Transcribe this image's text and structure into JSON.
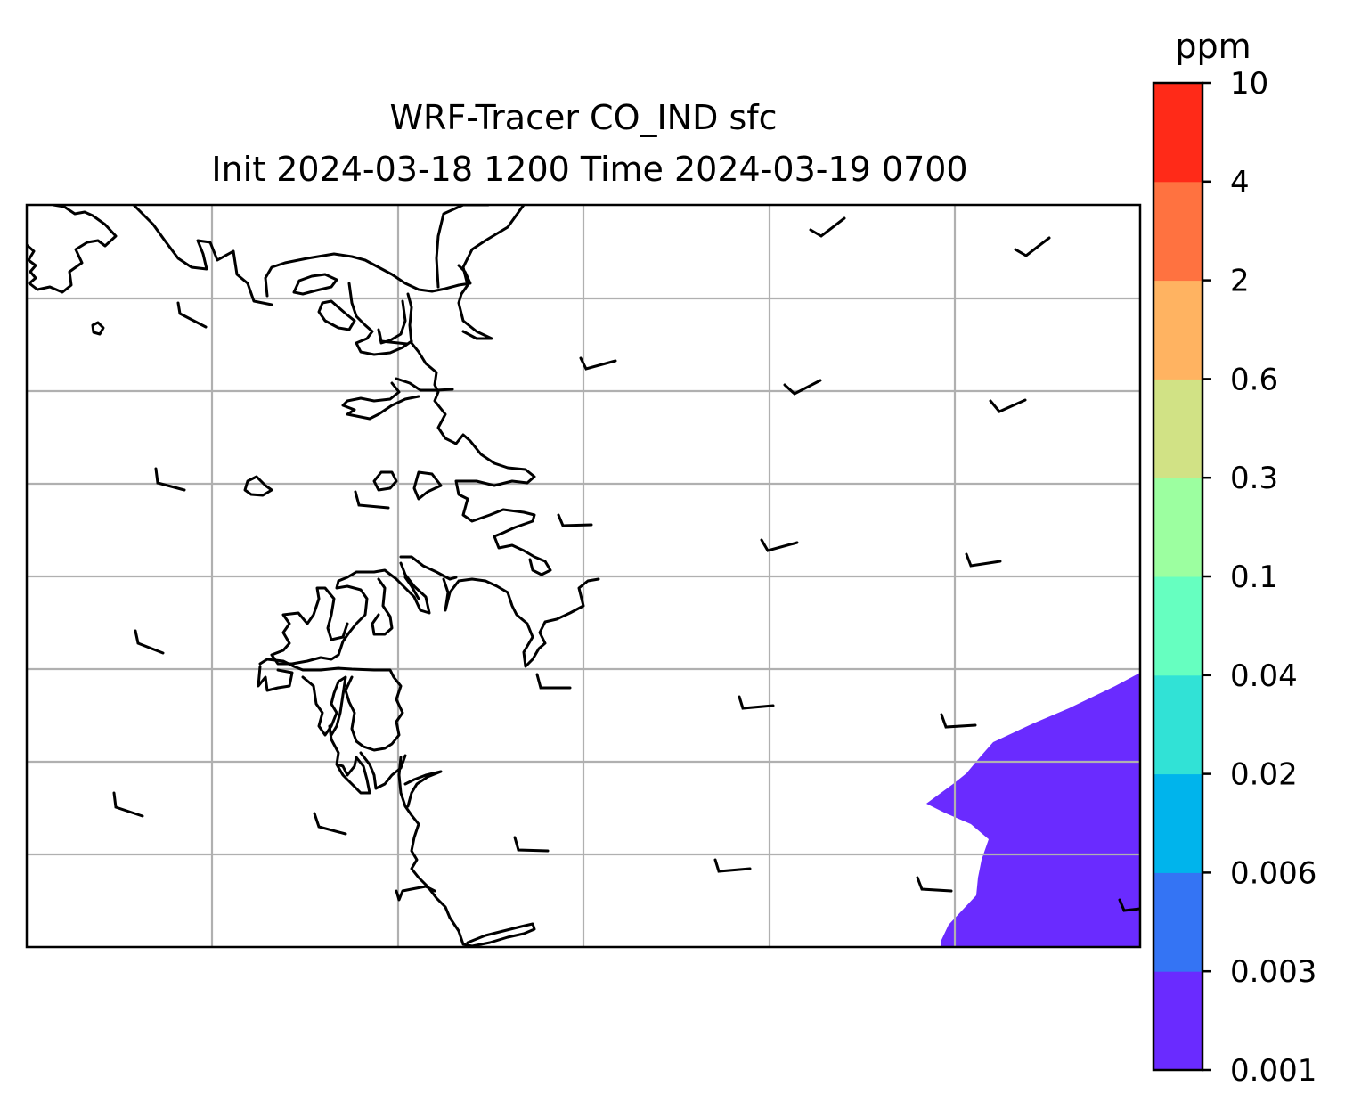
{
  "title": {
    "line1": "WRF-Tracer CO_IND sfc",
    "line2": "Init 2024-03-18 1200 Time 2024-03-19 0700"
  },
  "colorbar": {
    "unit": "ppm",
    "levels": [
      "0.001",
      "0.003",
      "0.006",
      "0.02",
      "0.04",
      "0.1",
      "0.3",
      "0.6",
      "2",
      "4",
      "10"
    ],
    "colors": [
      "#6a2bff",
      "#3474f4",
      "#00b4ec",
      "#31e2d6",
      "#66ffc0",
      "#9cffa0",
      "#d1e285",
      "#ffb361",
      "#ff7240",
      "#ff2a18"
    ]
  },
  "map": {
    "type": "contour-map",
    "variable": "CO_IND sfc",
    "grid": true,
    "filled_region_level": "0.001-0.003",
    "filled_region_color": "#6a2bff",
    "wind_barbs": true
  }
}
